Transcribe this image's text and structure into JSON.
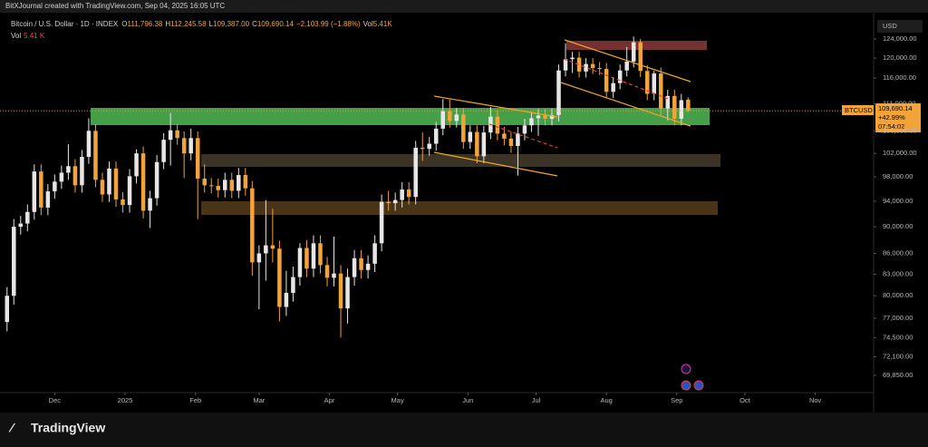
{
  "header": {
    "credit": "BitXJournal created with TradingView.com, Sep 04, 2025 16:05 UTC",
    "symbol": "Bitcoin / U.S. Dollar · 1D · INDEX",
    "ohlc": [
      {
        "k": "O",
        "v": "111,796.38"
      },
      {
        "k": "H",
        "v": "112,245.58"
      },
      {
        "k": "L",
        "v": "109,387.00"
      },
      {
        "k": "C",
        "v": "109,690.14"
      }
    ],
    "change": "−2,103.99 (−1.88%)",
    "vol_key": "Vol",
    "vol_value": "5.41K",
    "vol_row_key": "Vol",
    "vol_row_value": "5.41 K"
  },
  "currency": "USD",
  "price_label": {
    "symbol": "BTCUSD",
    "price": "109,690.14",
    "change": "+42.99%",
    "countdown": "07:54:02"
  },
  "footer": {
    "brand": "TradingView"
  },
  "chart_data": {
    "type": "candlestick",
    "log_scale": true,
    "up_color": "#e6e6e6",
    "down_color": "#f2a33a",
    "ylim": [
      67930,
      126500
    ],
    "yticks": [
      {
        "value": 124000,
        "label": "124,000.00"
      },
      {
        "value": 120000,
        "label": "120,000.00"
      },
      {
        "value": 116000,
        "label": "116,000.00"
      },
      {
        "value": 111000,
        "label": "111,000.00"
      },
      {
        "value": 106000,
        "label": "106,000.00"
      },
      {
        "value": 102000,
        "label": "102,000.00"
      },
      {
        "value": 98000,
        "label": "98,000.00"
      },
      {
        "value": 94000,
        "label": "94,000.00"
      },
      {
        "value": 90000,
        "label": "90,000.00"
      },
      {
        "value": 86000,
        "label": "86,000.00"
      },
      {
        "value": 83000,
        "label": "83,000.00"
      },
      {
        "value": 80000,
        "label": "80,000.00"
      },
      {
        "value": 77000,
        "label": "77,000.00"
      },
      {
        "value": 74500,
        "label": "74,500.00"
      },
      {
        "value": 72100,
        "label": "72,100.00"
      },
      {
        "value": 69850,
        "label": "69,850.00"
      }
    ],
    "xlim": [
      -0.5,
      127.1
    ],
    "xticks": [
      {
        "value": 7,
        "label": "Dec"
      },
      {
        "value": 17.33,
        "label": "2025"
      },
      {
        "value": 27.67,
        "label": "Feb"
      },
      {
        "value": 37,
        "label": "Mar"
      },
      {
        "value": 47.33,
        "label": "Apr"
      },
      {
        "value": 57.33,
        "label": "May"
      },
      {
        "value": 67.67,
        "label": "Jun"
      },
      {
        "value": 77.67,
        "label": "Jul"
      },
      {
        "value": 88,
        "label": "Aug"
      },
      {
        "value": 98.33,
        "label": "Sep"
      },
      {
        "value": 108.33,
        "label": "Oct"
      },
      {
        "value": 118.67,
        "label": "Nov"
      }
    ],
    "candles": [
      {
        "o": 76500,
        "h": 81200,
        "l": 75300,
        "c": 80000
      },
      {
        "o": 80000,
        "h": 91200,
        "l": 78800,
        "c": 90000
      },
      {
        "o": 90000,
        "h": 91700,
        "l": 88800,
        "c": 90500
      },
      {
        "o": 90500,
        "h": 93500,
        "l": 89300,
        "c": 92300
      },
      {
        "o": 92300,
        "h": 100100,
        "l": 91100,
        "c": 98900
      },
      {
        "o": 98900,
        "h": 100100,
        "l": 91800,
        "c": 93000
      },
      {
        "o": 93000,
        "h": 96800,
        "l": 91800,
        "c": 95600
      },
      {
        "o": 95600,
        "h": 98400,
        "l": 94400,
        "c": 97200
      },
      {
        "o": 97200,
        "h": 99900,
        "l": 96000,
        "c": 98700
      },
      {
        "o": 98700,
        "h": 103600,
        "l": 97500,
        "c": 99800
      },
      {
        "o": 99800,
        "h": 101000,
        "l": 95400,
        "c": 96600
      },
      {
        "o": 96600,
        "h": 102600,
        "l": 95400,
        "c": 101400
      },
      {
        "o": 101400,
        "h": 108300,
        "l": 100200,
        "c": 106000
      },
      {
        "o": 106000,
        "h": 107200,
        "l": 96300,
        "c": 97500
      },
      {
        "o": 97500,
        "h": 98700,
        "l": 93900,
        "c": 95100
      },
      {
        "o": 95100,
        "h": 100600,
        "l": 93900,
        "c": 99400
      },
      {
        "o": 99400,
        "h": 100600,
        "l": 93100,
        "c": 94300
      },
      {
        "o": 94300,
        "h": 95500,
        "l": 92200,
        "c": 93400
      },
      {
        "o": 93400,
        "h": 99300,
        "l": 92200,
        "c": 98100
      },
      {
        "o": 98100,
        "h": 102700,
        "l": 96900,
        "c": 102000
      },
      {
        "o": 102000,
        "h": 103200,
        "l": 91300,
        "c": 92500
      },
      {
        "o": 92500,
        "h": 95700,
        "l": 89800,
        "c": 94500
      },
      {
        "o": 94500,
        "h": 101700,
        "l": 93300,
        "c": 100500
      },
      {
        "o": 100500,
        "h": 105600,
        "l": 99300,
        "c": 104400
      },
      {
        "o": 104400,
        "h": 109300,
        "l": 99900,
        "c": 106100
      },
      {
        "o": 106100,
        "h": 107300,
        "l": 103500,
        "c": 104700
      },
      {
        "o": 104700,
        "h": 105900,
        "l": 97800,
        "c": 102000
      },
      {
        "o": 102000,
        "h": 106400,
        "l": 100800,
        "c": 104700
      },
      {
        "o": 104700,
        "h": 105900,
        "l": 91200,
        "c": 97700
      },
      {
        "o": 97700,
        "h": 100100,
        "l": 95400,
        "c": 96600
      },
      {
        "o": 96600,
        "h": 97800,
        "l": 95300,
        "c": 96500
      },
      {
        "o": 96500,
        "h": 97700,
        "l": 94600,
        "c": 95800
      },
      {
        "o": 95800,
        "h": 98700,
        "l": 94600,
        "c": 97500
      },
      {
        "o": 97500,
        "h": 98700,
        "l": 94500,
        "c": 95700
      },
      {
        "o": 95700,
        "h": 99500,
        "l": 94500,
        "c": 98300
      },
      {
        "o": 98300,
        "h": 99500,
        "l": 94900,
        "c": 96100
      },
      {
        "o": 96100,
        "h": 97300,
        "l": 82800,
        "c": 84700
      },
      {
        "o": 84700,
        "h": 87200,
        "l": 78200,
        "c": 86000
      },
      {
        "o": 86000,
        "h": 94200,
        "l": 82100,
        "c": 87200
      },
      {
        "o": 87200,
        "h": 92800,
        "l": 84700,
        "c": 86700
      },
      {
        "o": 86700,
        "h": 87900,
        "l": 76600,
        "c": 78500
      },
      {
        "o": 78500,
        "h": 83500,
        "l": 77300,
        "c": 80400
      },
      {
        "o": 80400,
        "h": 84100,
        "l": 79200,
        "c": 82600
      },
      {
        "o": 82600,
        "h": 87500,
        "l": 81400,
        "c": 86800
      },
      {
        "o": 86800,
        "h": 88000,
        "l": 82600,
        "c": 83800
      },
      {
        "o": 83800,
        "h": 88700,
        "l": 82600,
        "c": 87500
      },
      {
        "o": 87500,
        "h": 88700,
        "l": 83100,
        "c": 84300
      },
      {
        "o": 84300,
        "h": 85500,
        "l": 81300,
        "c": 82500
      },
      {
        "o": 82500,
        "h": 88500,
        "l": 81300,
        "c": 83100
      },
      {
        "o": 83100,
        "h": 84300,
        "l": 74500,
        "c": 78300
      },
      {
        "o": 78300,
        "h": 83800,
        "l": 76300,
        "c": 82600
      },
      {
        "o": 82600,
        "h": 86500,
        "l": 81400,
        "c": 85300
      },
      {
        "o": 85300,
        "h": 86500,
        "l": 82400,
        "c": 83600
      },
      {
        "o": 83600,
        "h": 85700,
        "l": 82400,
        "c": 84500
      },
      {
        "o": 84500,
        "h": 88700,
        "l": 83300,
        "c": 87500
      },
      {
        "o": 87500,
        "h": 95100,
        "l": 86300,
        "c": 93900
      },
      {
        "o": 93900,
        "h": 95700,
        "l": 92500,
        "c": 93700
      },
      {
        "o": 93700,
        "h": 95400,
        "l": 92500,
        "c": 94200
      },
      {
        "o": 94200,
        "h": 97100,
        "l": 93000,
        "c": 95900
      },
      {
        "o": 95900,
        "h": 97100,
        "l": 93500,
        "c": 94700
      },
      {
        "o": 94700,
        "h": 104200,
        "l": 93500,
        "c": 103000
      },
      {
        "o": 103000,
        "h": 105700,
        "l": 100700,
        "c": 102800
      },
      {
        "o": 102800,
        "h": 104900,
        "l": 101600,
        "c": 103700
      },
      {
        "o": 103700,
        "h": 107600,
        "l": 102500,
        "c": 106400
      },
      {
        "o": 106400,
        "h": 111900,
        "l": 105200,
        "c": 109600
      },
      {
        "o": 109600,
        "h": 111800,
        "l": 106600,
        "c": 107800
      },
      {
        "o": 107800,
        "h": 110200,
        "l": 106600,
        "c": 109000
      },
      {
        "o": 109000,
        "h": 110200,
        "l": 102800,
        "c": 104000
      },
      {
        "o": 104000,
        "h": 107000,
        "l": 102800,
        "c": 105800
      },
      {
        "o": 105800,
        "h": 107000,
        "l": 100300,
        "c": 101500
      },
      {
        "o": 101500,
        "h": 106900,
        "l": 100300,
        "c": 105700
      },
      {
        "o": 105700,
        "h": 110400,
        "l": 104500,
        "c": 108600
      },
      {
        "o": 108600,
        "h": 109800,
        "l": 104300,
        "c": 105500
      },
      {
        "o": 105500,
        "h": 106700,
        "l": 103400,
        "c": 104600
      },
      {
        "o": 104600,
        "h": 105800,
        "l": 102100,
        "c": 103300
      },
      {
        "o": 103300,
        "h": 106700,
        "l": 98200,
        "c": 105500
      },
      {
        "o": 105500,
        "h": 108200,
        "l": 104300,
        "c": 107000
      },
      {
        "o": 107000,
        "h": 109500,
        "l": 105800,
        "c": 108300
      },
      {
        "o": 108300,
        "h": 110000,
        "l": 105100,
        "c": 108800
      },
      {
        "o": 108800,
        "h": 110000,
        "l": 107000,
        "c": 108200
      },
      {
        "o": 108200,
        "h": 110100,
        "l": 107000,
        "c": 108900
      },
      {
        "o": 108900,
        "h": 118700,
        "l": 107700,
        "c": 117500
      },
      {
        "o": 117500,
        "h": 123000,
        "l": 116300,
        "c": 119800
      },
      {
        "o": 119800,
        "h": 121300,
        "l": 117000,
        "c": 120100
      },
      {
        "o": 120100,
        "h": 121300,
        "l": 116100,
        "c": 117300
      },
      {
        "o": 117300,
        "h": 120000,
        "l": 116100,
        "c": 118800
      },
      {
        "o": 118800,
        "h": 120000,
        "l": 116800,
        "c": 118000
      },
      {
        "o": 118000,
        "h": 119200,
        "l": 116600,
        "c": 117800
      },
      {
        "o": 117800,
        "h": 119000,
        "l": 112100,
        "c": 113300
      },
      {
        "o": 113300,
        "h": 116200,
        "l": 112100,
        "c": 115000
      },
      {
        "o": 115000,
        "h": 118700,
        "l": 113800,
        "c": 117500
      },
      {
        "o": 117500,
        "h": 122300,
        "l": 116300,
        "c": 119300
      },
      {
        "o": 119300,
        "h": 124500,
        "l": 118100,
        "c": 123300
      },
      {
        "o": 123300,
        "h": 124000,
        "l": 116200,
        "c": 117400
      },
      {
        "o": 117400,
        "h": 118600,
        "l": 111700,
        "c": 112900
      },
      {
        "o": 112900,
        "h": 117400,
        "l": 111700,
        "c": 116900
      },
      {
        "o": 116900,
        "h": 118100,
        "l": 108900,
        "c": 110100
      },
      {
        "o": 110100,
        "h": 113700,
        "l": 107900,
        "c": 112500
      },
      {
        "o": 112500,
        "h": 113700,
        "l": 107000,
        "c": 108200
      },
      {
        "o": 108200,
        "h": 112900,
        "l": 107000,
        "c": 111700
      },
      {
        "o": 111796.38,
        "h": 112245.58,
        "l": 109387,
        "c": 109690.14
      }
    ]
  }
}
